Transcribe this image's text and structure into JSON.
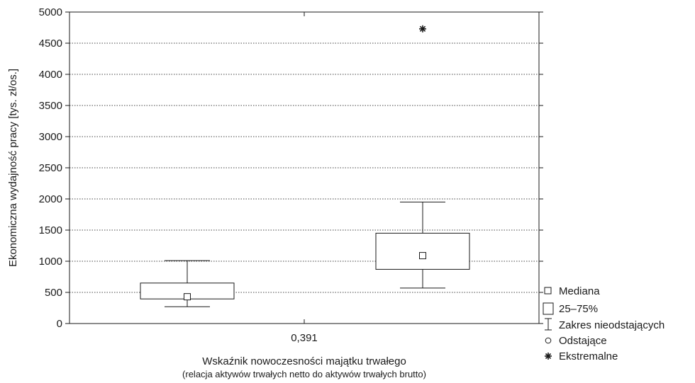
{
  "chart_data": {
    "type": "boxplot",
    "xlabel": "Wskaźnik nowoczesności majątku trwałego",
    "xlabel_sub": "(relacja aktywów trwałych netto do aktywów trwałych brutto)",
    "ylabel": "Ekonomiczna wydajność pracy [tys. zł/os.]",
    "ylim": [
      0,
      5000
    ],
    "y_ticks": [
      0,
      500,
      1000,
      1500,
      2000,
      2500,
      3000,
      3500,
      4000,
      4500,
      5000
    ],
    "y_tick_labels": [
      "0",
      "500",
      "1000",
      "1500",
      "2000",
      "2500",
      "3000",
      "3500",
      "4000",
      "4500",
      "5000"
    ],
    "x_divider_label": "0,391",
    "grid": true,
    "legend_position": "right-bottom",
    "legend": [
      {
        "symbol": "median",
        "label": "Mediana"
      },
      {
        "symbol": "box",
        "label": "25–75%"
      },
      {
        "symbol": "whisker",
        "label": "Zakres nieodstających"
      },
      {
        "symbol": "outlier",
        "label": "Odstające"
      },
      {
        "symbol": "extreme",
        "label": "Ekstremalne"
      }
    ],
    "groups": [
      {
        "position": "low",
        "whisker_low": 270,
        "q1": 395,
        "median": 430,
        "q3": 650,
        "whisker_high": 1010,
        "outliers": [],
        "extremes": []
      },
      {
        "position": "high",
        "whisker_low": 570,
        "q1": 870,
        "median": 1090,
        "q3": 1450,
        "whisker_high": 1950,
        "outliers": [],
        "extremes": [
          4730
        ]
      }
    ]
  }
}
